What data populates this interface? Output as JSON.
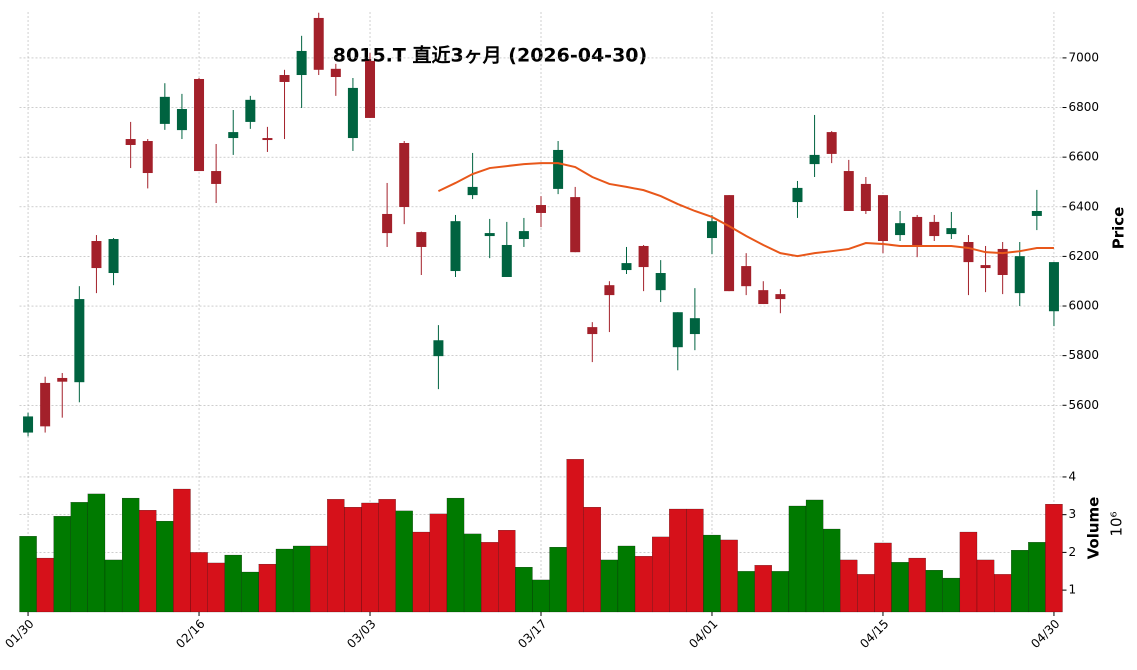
{
  "chart_data": {
    "type": "candlestick",
    "title": "8015.T 直近3ヶ月 (2026-04-30)",
    "categories": [
      "01/30",
      null,
      null,
      null,
      null,
      null,
      null,
      null,
      null,
      null,
      "02/16",
      null,
      null,
      null,
      null,
      null,
      null,
      null,
      null,
      null,
      "03/03",
      null,
      null,
      null,
      null,
      null,
      null,
      null,
      null,
      null,
      "03/17",
      null,
      null,
      null,
      null,
      null,
      null,
      null,
      null,
      null,
      "04/01",
      null,
      null,
      null,
      null,
      null,
      null,
      null,
      null,
      null,
      "04/15",
      null,
      null,
      null,
      null,
      null,
      null,
      null,
      null,
      null,
      "04/30"
    ],
    "open": [
      5490,
      5690,
      5710,
      5693,
      6262,
      6133,
      6673,
      6665,
      6734,
      6709,
      6915,
      6544,
      6677,
      6742,
      6677,
      6931,
      6931,
      7161,
      6956,
      6677,
      6988,
      6371,
      6657,
      6298,
      5798,
      6141,
      6447,
      6282,
      6117,
      6270,
      6407,
      6472,
      6439,
      5915,
      6084,
      6145,
      6242,
      6064,
      5834,
      5887,
      6274,
      6447,
      6161,
      6064,
      6048,
      6419,
      6572,
      6701,
      6544,
      6492,
      6447,
      6286,
      6359,
      6339,
      6290,
      6258,
      6165,
      6230,
      6052,
      6363,
      5979
    ],
    "high": [
      5570,
      5715,
      5730,
      6080,
      6286,
      6274,
      6742,
      6673,
      6898,
      6855,
      6919,
      6653,
      6790,
      6847,
      6722,
      6952,
      7089,
      7182,
      6976,
      6919,
      7020,
      6496,
      6665,
      6300,
      5923,
      6367,
      6617,
      6351,
      6339,
      6355,
      6443,
      6665,
      6480,
      5935,
      6100,
      6238,
      6246,
      6185,
      5975,
      6072,
      6367,
      6447,
      6213,
      6100,
      6068,
      6504,
      6770,
      6705,
      6589,
      6520,
      6447,
      6383,
      6367,
      6367,
      6379,
      6286,
      6242,
      6258,
      6258,
      6468,
      6177
    ],
    "low": [
      5475,
      5490,
      5550,
      5612,
      6052,
      6084,
      6556,
      6474,
      6710,
      6673,
      6544,
      6415,
      6609,
      6714,
      6621,
      6673,
      6798,
      6931,
      6847,
      6625,
      6758,
      6238,
      6330,
      6125,
      5665,
      6117,
      6431,
      6193,
      6117,
      6238,
      6318,
      6451,
      6217,
      5774,
      5895,
      6129,
      6060,
      6016,
      5741,
      5822,
      6209,
      6060,
      6044,
      6008,
      5971,
      6355,
      6520,
      6576,
      6383,
      6371,
      6213,
      6262,
      6197,
      6262,
      6270,
      6044,
      6056,
      6048,
      6000,
      6306,
      5919
    ],
    "close": [
      5555,
      5515,
      5695,
      6028,
      6153,
      6270,
      6649,
      6536,
      6843,
      6794,
      6544,
      6492,
      6701,
      6831,
      6669,
      6903,
      7028,
      6952,
      6923,
      6879,
      6758,
      6294,
      6399,
      6238,
      5862,
      6342,
      6480,
      6294,
      6246,
      6302,
      6375,
      6629,
      6217,
      5887,
      6044,
      6173,
      6157,
      6133,
      5975,
      5951,
      6342,
      6060,
      6080,
      6008,
      6028,
      6476,
      6609,
      6613,
      6383,
      6383,
      6262,
      6334,
      6242,
      6282,
      6314,
      6177,
      6153,
      6125,
      6201,
      6383,
      6177
    ],
    "up_color": "#006340",
    "down_color": "#a3202a",
    "ma": {
      "color": "#e8571a",
      "values": [
        null,
        null,
        null,
        null,
        null,
        null,
        null,
        null,
        null,
        null,
        null,
        null,
        null,
        null,
        null,
        null,
        null,
        null,
        null,
        null,
        null,
        null,
        null,
        null,
        6463,
        6496,
        6532,
        6556,
        6564,
        6572,
        6576,
        6576,
        6560,
        6520,
        6492,
        6480,
        6467,
        6443,
        6411,
        6383,
        6359,
        6322,
        6282,
        6246,
        6213,
        6201,
        6213,
        6221,
        6230,
        6254,
        6250,
        6242,
        6242,
        6242,
        6242,
        6234,
        6217,
        6213,
        6221,
        6234,
        6234
      ]
    },
    "volume": {
      "values": [
        2.43,
        1.85,
        2.96,
        3.33,
        3.55,
        1.8,
        3.44,
        3.12,
        2.83,
        3.68,
        2.0,
        1.72,
        1.93,
        1.48,
        1.69,
        2.09,
        2.17,
        2.17,
        3.41,
        3.2,
        3.31,
        3.41,
        3.1,
        2.54,
        3.02,
        3.44,
        2.49,
        2.27,
        2.59,
        1.61,
        1.27,
        2.14,
        4.47,
        3.2,
        1.8,
        2.17,
        1.9,
        2.41,
        3.15,
        3.15,
        2.46,
        2.33,
        1.5,
        1.66,
        1.5,
        3.23,
        3.39,
        2.62,
        1.8,
        1.42,
        2.25,
        1.74,
        1.85,
        1.53,
        1.32,
        2.54,
        1.8,
        1.42,
        2.06,
        2.27,
        3.28
      ],
      "colors": [
        "#007a00",
        "#d6111a",
        "#007a00",
        "#007a00",
        "#007a00",
        "#007a00",
        "#007a00",
        "#d6111a",
        "#007a00",
        "#d6111a",
        "#d6111a",
        "#d6111a",
        "#007a00",
        "#007a00",
        "#d6111a",
        "#007a00",
        "#007a00",
        "#d6111a",
        "#d6111a",
        "#d6111a",
        "#d6111a",
        "#d6111a",
        "#007a00",
        "#d6111a",
        "#d6111a",
        "#007a00",
        "#007a00",
        "#d6111a",
        "#d6111a",
        "#007a00",
        "#007a00",
        "#007a00",
        "#d6111a",
        "#d6111a",
        "#007a00",
        "#007a00",
        "#d6111a",
        "#d6111a",
        "#d6111a",
        "#d6111a",
        "#007a00",
        "#d6111a",
        "#007a00",
        "#d6111a",
        "#007a00",
        "#007a00",
        "#007a00",
        "#007a00",
        "#d6111a",
        "#d6111a",
        "#d6111a",
        "#007a00",
        "#d6111a",
        "#007a00",
        "#007a00",
        "#d6111a",
        "#d6111a",
        "#d6111a",
        "#007a00",
        "#007a00",
        "#d6111a"
      ]
    },
    "ylim": [
      5460,
      7185
    ],
    "yticks": [
      5600,
      5800,
      6000,
      6200,
      6400,
      6600,
      6800,
      7000
    ],
    "y_label": "Price",
    "volume_ylim": [
      0.42,
      4.9
    ],
    "volume_yticks": [
      1,
      2,
      3,
      4
    ],
    "volume_label": "Volume",
    "volume_exponent": "10⁶",
    "grid": true
  }
}
